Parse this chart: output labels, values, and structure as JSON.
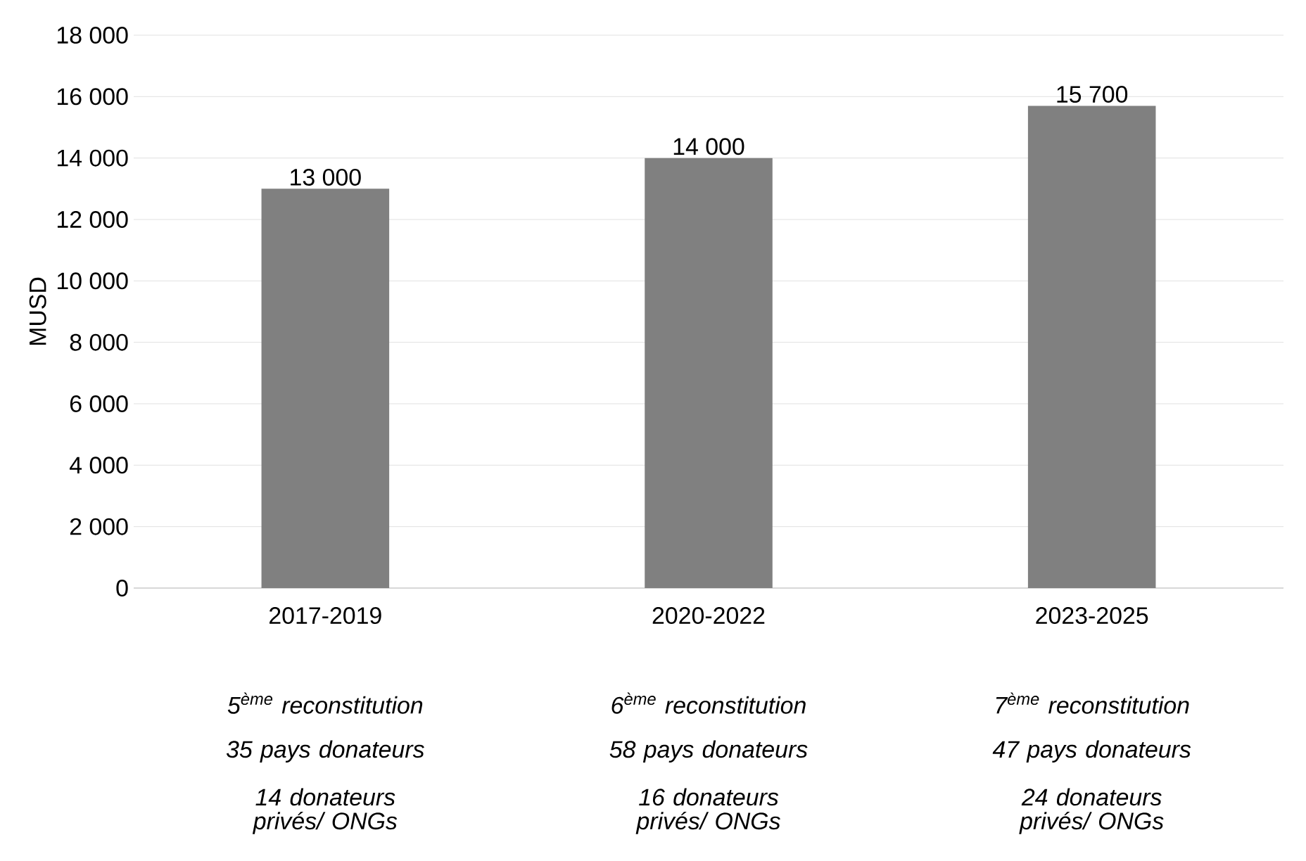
{
  "chart_data": {
    "type": "bar",
    "ylabel": "MUSD",
    "categories": [
      "2017-2019",
      "2020-2022",
      "2023-2025"
    ],
    "values": [
      13000,
      14000,
      15700
    ],
    "value_labels": [
      "13 000",
      "14 000",
      "15 700"
    ],
    "color": "#808080",
    "ylim": [
      0,
      18000
    ],
    "yticks": [
      {
        "value": 0,
        "label": "0"
      },
      {
        "value": 2000,
        "label": "2 000"
      },
      {
        "value": 4000,
        "label": "4 000"
      },
      {
        "value": 6000,
        "label": "6 000"
      },
      {
        "value": 8000,
        "label": "8 000"
      },
      {
        "value": 10000,
        "label": "10 000"
      },
      {
        "value": 12000,
        "label": "12 000"
      },
      {
        "value": 14000,
        "label": "14 000"
      },
      {
        "value": 16000,
        "label": "16 000"
      },
      {
        "value": 18000,
        "label": "18 000"
      }
    ],
    "grid": "y",
    "annotations": [
      "5$^{ème}$ reconstitution",
      "35 pays donateurs",
      "14 donateurs privés/ ONGs",
      "6$^{ème}$ reconstitution",
      "58 pays donateurs",
      "16 donateurs privés/ ONGs",
      "7$^{ème}$ reconstitution",
      "47 pays donateurs",
      "24 donateurs privés/ ONGs"
    ]
  }
}
